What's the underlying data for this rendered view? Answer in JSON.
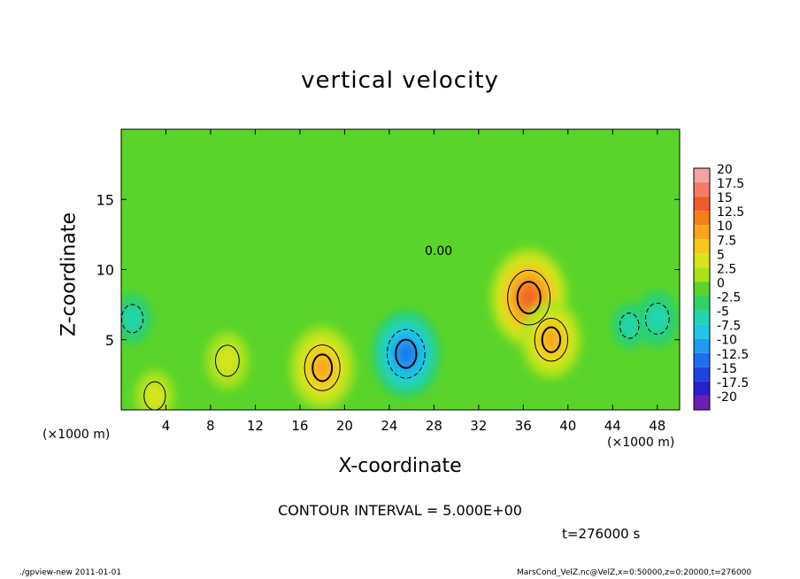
{
  "chart_data": {
    "type": "heatmap",
    "title": "vertical velocity",
    "xlabel": "X-coordinate",
    "ylabel": "Z-coordinate",
    "x_unit": "(×1000 m)",
    "y_unit": "(×1000 m)",
    "xlim": [
      0,
      50
    ],
    "ylim": [
      0,
      20
    ],
    "x_ticks": [
      "4",
      "8",
      "12",
      "16",
      "20",
      "24",
      "28",
      "32",
      "36",
      "40",
      "44",
      "48"
    ],
    "y_ticks": [
      "5",
      "10",
      "15"
    ],
    "contour_label": "0.00",
    "contour_interval": "CONTOUR INTERVAL = 5.000E+00",
    "time_label": "t=276000 s",
    "colorbar": {
      "labels": [
        "20",
        "17.5",
        "15",
        "12.5",
        "10",
        "7.5",
        "5",
        "2.5",
        "0",
        "-2.5",
        "-5",
        "-7.5",
        "-10",
        "-12.5",
        "-15",
        "-17.5",
        "-20"
      ],
      "colors": [
        "#f5a3a3",
        "#f47a6a",
        "#f05a2a",
        "#f57f1a",
        "#f7a51a",
        "#f5c81a",
        "#d8e51a",
        "#a8e21a",
        "#5ad42a",
        "#2fcf6a",
        "#20d6b0",
        "#1fc6e8",
        "#1f9bf0",
        "#1f6ef0",
        "#1f42e0",
        "#2a1fc8",
        "#6a1fb4"
      ]
    },
    "features": [
      {
        "x": 36.5,
        "z": 8.0,
        "value": 14
      },
      {
        "x": 38.5,
        "z": 5.0,
        "value": 10
      },
      {
        "x": 18.0,
        "z": 3.0,
        "value": 11
      },
      {
        "x": 9.5,
        "z": 3.5,
        "value": 6
      },
      {
        "x": 3.0,
        "z": 1.0,
        "value": 5
      },
      {
        "x": 25.5,
        "z": 4.0,
        "value": -12
      },
      {
        "x": 48.0,
        "z": 6.5,
        "value": -6
      },
      {
        "x": 1.0,
        "z": 6.5,
        "value": -5
      },
      {
        "x": 45.5,
        "z": 6.0,
        "value": -4
      }
    ]
  },
  "footer": {
    "left": "./gpview-new   2011-01-01",
    "right": "MarsCond_VelZ.nc@VelZ,x=0:50000,z=0:20000,t=276000"
  }
}
